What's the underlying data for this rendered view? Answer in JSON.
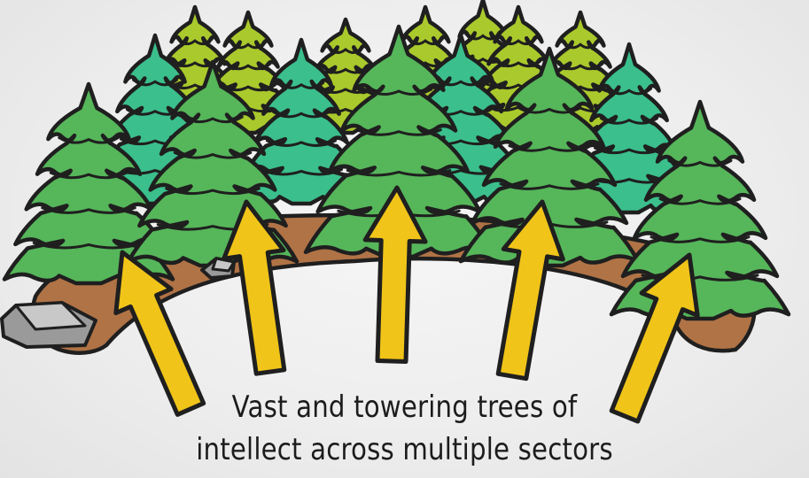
{
  "caption": {
    "line1": "Vast and towering trees of",
    "line2": "intellect across multiple sectors"
  },
  "colors": {
    "background": "#ececec",
    "tree_front": "#56b65a",
    "tree_front_light": "#7ed07a",
    "tree_mid": "#3bbf8c",
    "tree_back": "#aac92c",
    "ground": "#b07346",
    "arrow": "#f0c419",
    "rock": "#9a9a9a",
    "outline": "#1f1f1f"
  },
  "icons": {
    "arrow": "up-arrow-icon",
    "tree": "pine-tree-icon",
    "rock": "rock-icon"
  }
}
